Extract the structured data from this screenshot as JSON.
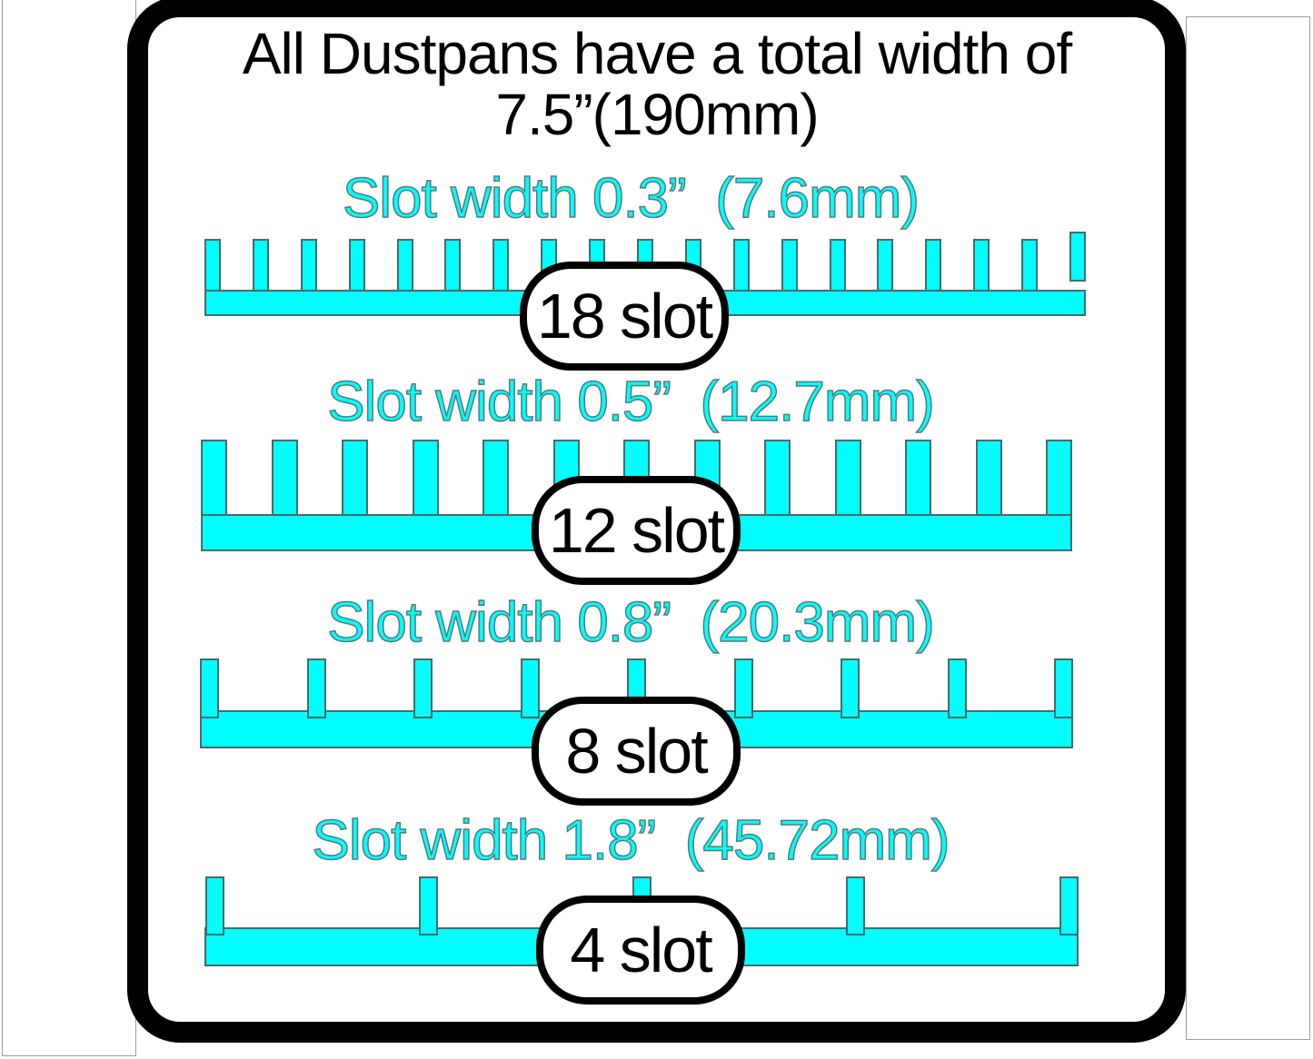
{
  "title": {
    "line1": "All Dustpans have a total width of",
    "line2": "7.5”(190mm)"
  },
  "dustpan_total_width": {
    "inches": 7.5,
    "millimeters": 190
  },
  "colors": {
    "accent_cyan": "#00ffff",
    "shape_outline": "#4a6a6a",
    "frame_black": "#000000",
    "page_edge_gray": "#9a9a9a"
  },
  "rows": [
    {
      "label": "Slot width 0.3”  (7.6mm)",
      "slot_width_inches": 0.3,
      "slot_width_mm": 7.6,
      "badge": "18 slot",
      "slot_count": 18
    },
    {
      "label": "Slot width 0.5”  (12.7mm)",
      "slot_width_inches": 0.5,
      "slot_width_mm": 12.7,
      "badge": "12 slot",
      "slot_count": 12
    },
    {
      "label": "Slot width 0.8”  (20.3mm)",
      "slot_width_inches": 0.8,
      "slot_width_mm": 20.3,
      "badge": "8 slot",
      "slot_count": 8
    },
    {
      "label": "Slot width 1.8”  (45.72mm)",
      "slot_width_inches": 1.8,
      "slot_width_mm": 45.72,
      "badge": "4 slot",
      "slot_count": 4
    }
  ]
}
